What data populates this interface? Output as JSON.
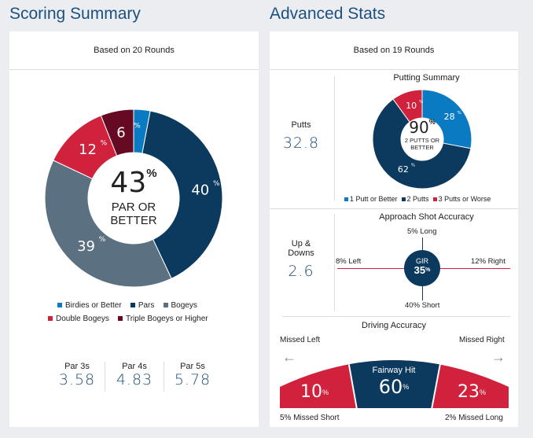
{
  "scoring": {
    "title": "Scoring Summary",
    "based_on": "Based on 20 Rounds",
    "center_value": "43",
    "center_unit": "%",
    "center_label_1": "PAR OR",
    "center_label_2": "BETTER",
    "segments": [
      {
        "name": "Birdies or Better",
        "value": 3,
        "color": "#0a7bc2",
        "label": ""
      },
      {
        "name": "Pars",
        "value": 40,
        "color": "#0c3a5e",
        "label": "40"
      },
      {
        "name": "Bogeys",
        "value": 39,
        "color": "#5b7081",
        "label": "39"
      },
      {
        "name": "Double Bogeys",
        "value": 12,
        "color": "#d0223c",
        "label": "12"
      },
      {
        "name": "Triple Bogeys or Higher",
        "value": 6,
        "color": "#650a22",
        "label": "6"
      }
    ],
    "averages": [
      {
        "label": "Par 3s",
        "value": "3.58"
      },
      {
        "label": "Par 4s",
        "value": "4.83"
      },
      {
        "label": "Par 5s",
        "value": "5.78"
      }
    ]
  },
  "advanced": {
    "title": "Advanced Stats",
    "based_on": "Based on 19 Rounds",
    "putts": {
      "label": "Putts",
      "value": "32.8"
    },
    "putting": {
      "title": "Putting Summary",
      "center_value": "90",
      "center_unit": "%",
      "center_label_1": "2 PUTTS OR",
      "center_label_2": "BETTER",
      "segments": [
        {
          "name": "1 Putt or Better",
          "value": 28,
          "color": "#0a7bc2",
          "label": "28"
        },
        {
          "name": "2 Putts",
          "value": 62,
          "color": "#0c3a5e",
          "label": "62"
        },
        {
          "name": "3 Putts or Worse",
          "value": 10,
          "color": "#d0223c",
          "label": "10"
        }
      ]
    },
    "updowns": {
      "label_1": "Up &",
      "label_2": "Downs",
      "value": "2.6"
    },
    "approach": {
      "title": "Approach Shot Accuracy",
      "long": "5% Long",
      "left": "8% Left",
      "right": "12% Right",
      "short": "40% Short",
      "gir_label": "GIR",
      "gir_value": "35",
      "gir_unit": "%"
    },
    "driving": {
      "title": "Driving Accuracy",
      "missed_left_label": "Missed Left",
      "missed_right_label": "Missed Right",
      "left_value": "10",
      "center_label": "Fairway Hit",
      "center_value": "60",
      "right_value": "23",
      "unit": "%",
      "missed_short": "5% Missed Short",
      "missed_long": "2% Missed Long",
      "arrow_left": "←",
      "arrow_right": "→"
    }
  }
}
